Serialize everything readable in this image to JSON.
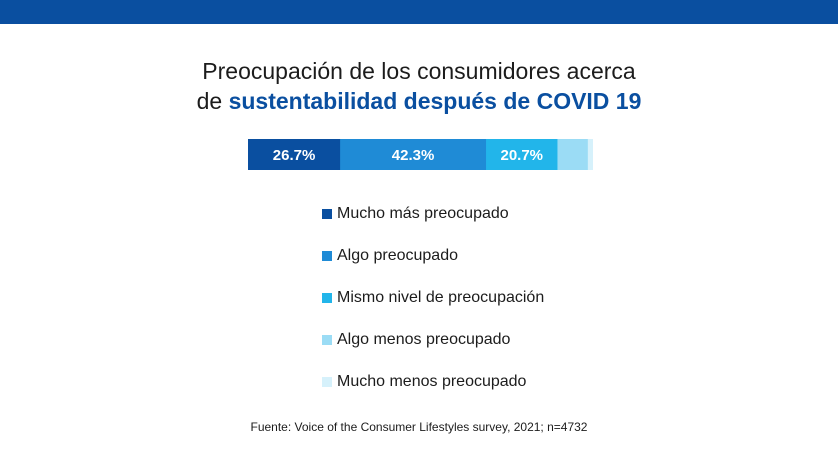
{
  "header": {
    "bar_color": "#0a4fa0"
  },
  "title": {
    "line1": "Preocupación de los consumidores acerca",
    "line2_prefix": "de ",
    "line2_highlight": "sustentabilidad después de COVID 19",
    "highlight_color": "#0a4fa0"
  },
  "chart_data": {
    "type": "bar",
    "orientation": "horizontal-stacked",
    "title": "Preocupación de los consumidores acerca de sustentabilidad después de COVID 19",
    "unit": "%",
    "series": [
      {
        "name": "Mucho más preocupado",
        "value": 26.7,
        "label": "26.7%",
        "color": "#0a4fa0"
      },
      {
        "name": "Algo preocupado",
        "value": 42.3,
        "label": "42.3%",
        "color": "#1f8bd6"
      },
      {
        "name": "Mismo nivel de preocupación",
        "value": 20.7,
        "label": "20.7%",
        "color": "#22b5ea"
      },
      {
        "name": "Algo menos preocupado",
        "value": 8.8,
        "label": "",
        "color": "#9bdcf5"
      },
      {
        "name": "Mucho menos preocupado",
        "value": 1.5,
        "label": "",
        "color": "#d6f1fb"
      }
    ],
    "legend": {
      "position": "below",
      "orientation": "vertical"
    }
  },
  "source": "Fuente: Voice of the Consumer Lifestyles survey, 2021; n=4732"
}
